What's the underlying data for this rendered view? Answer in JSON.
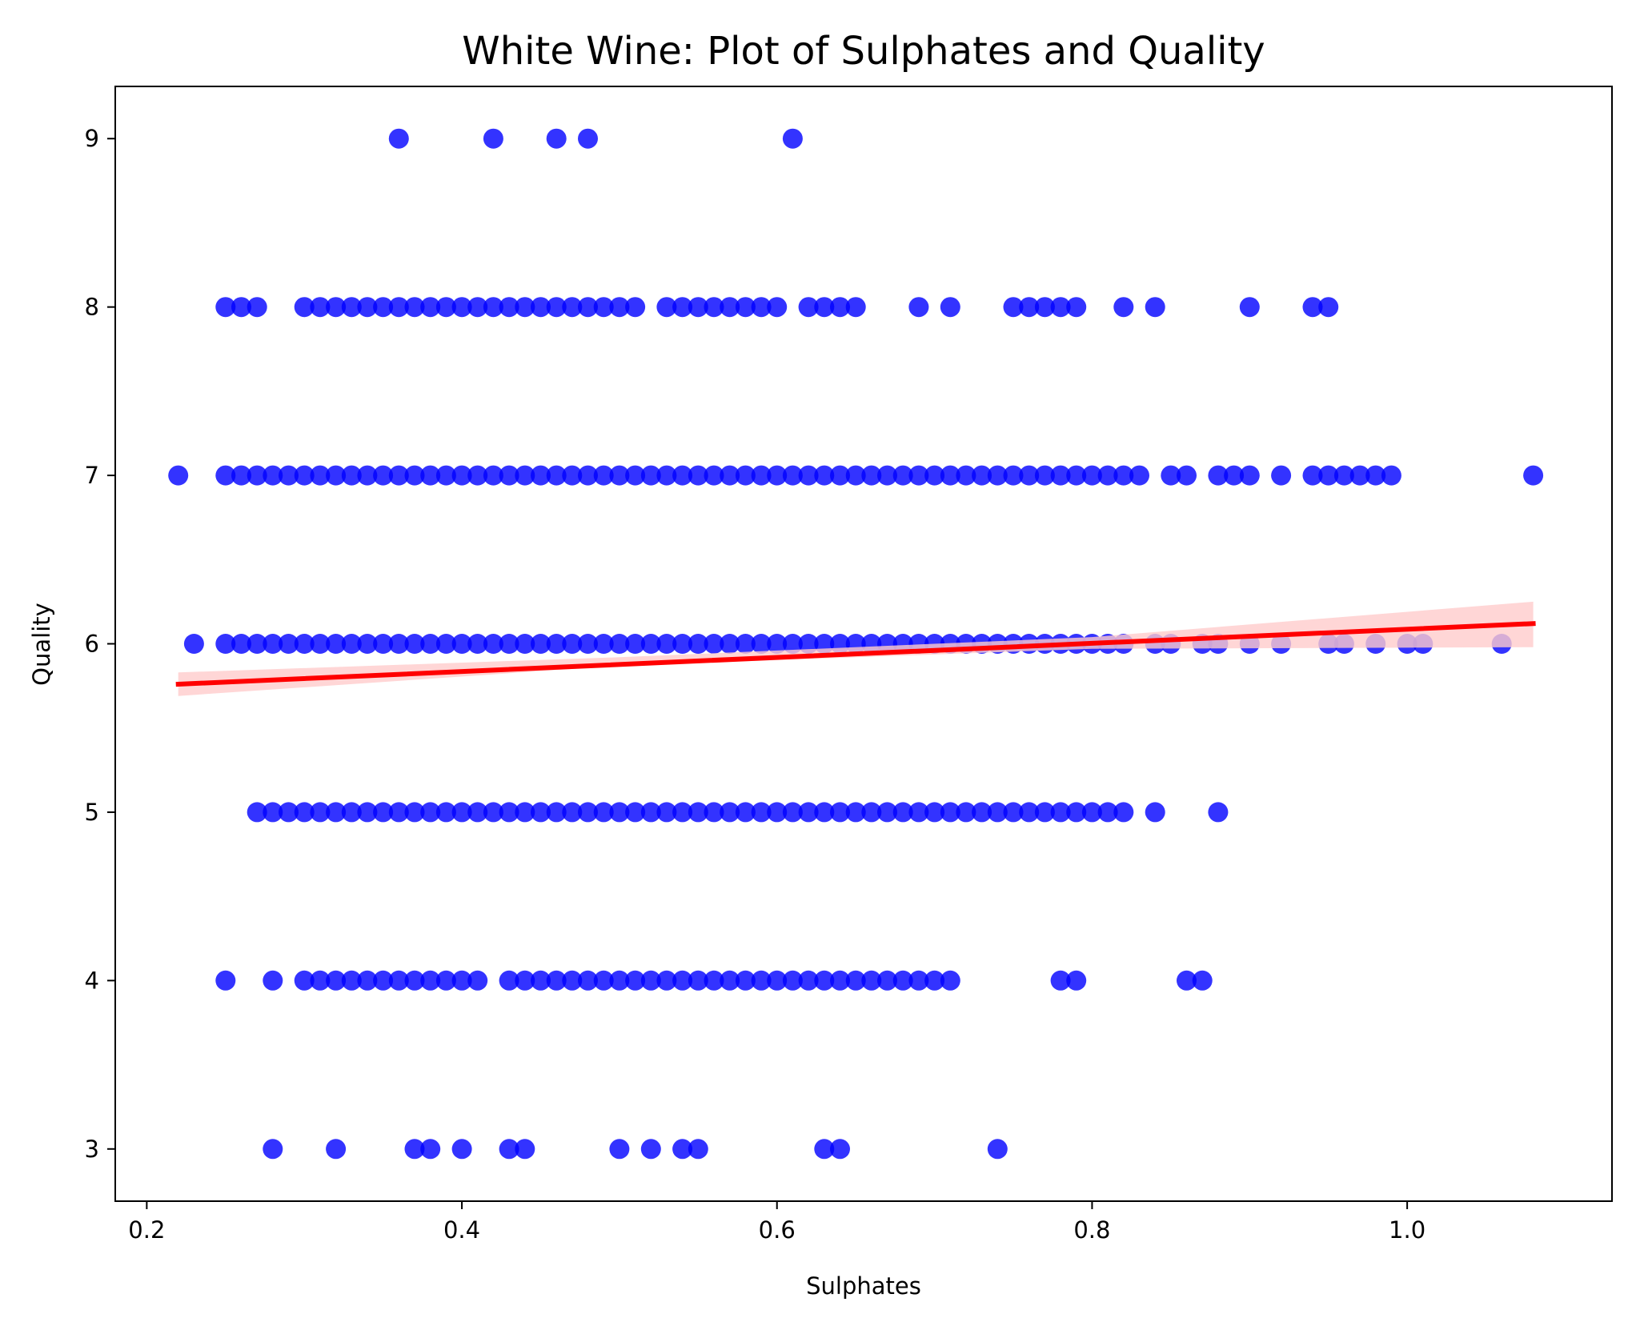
{
  "chart_data": {
    "type": "scatter",
    "title": "White Wine: Plot of Sulphates and Quality",
    "xlabel": "Sulphates",
    "ylabel": "Quality",
    "xlim": [
      0.18,
      1.13
    ],
    "ylim": [
      2.69,
      9.31
    ],
    "xticks": [
      0.2,
      0.4,
      0.6,
      0.8,
      1.0
    ],
    "xtick_labels": [
      "0.2",
      "0.4",
      "0.6",
      "0.8",
      "1.0"
    ],
    "yticks": [
      3,
      4,
      5,
      6,
      7,
      8,
      9
    ],
    "ytick_labels": [
      "3",
      "4",
      "5",
      "6",
      "7",
      "8",
      "9"
    ],
    "grid": false,
    "legend": "none",
    "colors": {
      "points": "#0000ff",
      "regression": "#ff0000",
      "confidence_band": "#ffcccc"
    },
    "series": [
      {
        "kind": "points",
        "rows": [
          {
            "y": 9,
            "x": [
              0.36,
              0.42,
              0.46,
              0.48,
              0.61
            ]
          },
          {
            "y": 8,
            "x": [
              0.25,
              0.26,
              0.27,
              0.3,
              0.31,
              0.32,
              0.33,
              0.34,
              0.35,
              0.36,
              0.37,
              0.38,
              0.39,
              0.4,
              0.41,
              0.42,
              0.43,
              0.44,
              0.45,
              0.46,
              0.47,
              0.48,
              0.49,
              0.5,
              0.51,
              0.53,
              0.54,
              0.55,
              0.56,
              0.57,
              0.58,
              0.59,
              0.6,
              0.62,
              0.63,
              0.64,
              0.65,
              0.69,
              0.71,
              0.75,
              0.76,
              0.77,
              0.78,
              0.79,
              0.82,
              0.84,
              0.9,
              0.94,
              0.95
            ]
          },
          {
            "y": 7,
            "x": [
              0.22,
              0.25,
              0.26,
              0.27,
              0.28,
              0.29,
              0.3,
              0.31,
              0.32,
              0.33,
              0.34,
              0.35,
              0.36,
              0.37,
              0.38,
              0.39,
              0.4,
              0.41,
              0.42,
              0.43,
              0.44,
              0.45,
              0.46,
              0.47,
              0.48,
              0.49,
              0.5,
              0.51,
              0.52,
              0.53,
              0.54,
              0.55,
              0.56,
              0.57,
              0.58,
              0.59,
              0.6,
              0.61,
              0.62,
              0.63,
              0.64,
              0.65,
              0.66,
              0.67,
              0.68,
              0.69,
              0.7,
              0.71,
              0.72,
              0.73,
              0.74,
              0.75,
              0.76,
              0.77,
              0.78,
              0.79,
              0.8,
              0.81,
              0.82,
              0.83,
              0.85,
              0.86,
              0.88,
              0.89,
              0.9,
              0.92,
              0.94,
              0.95,
              0.96,
              0.97,
              0.98,
              0.99,
              1.08
            ]
          },
          {
            "y": 6,
            "x": [
              0.23,
              0.25,
              0.26,
              0.27,
              0.28,
              0.29,
              0.3,
              0.31,
              0.32,
              0.33,
              0.34,
              0.35,
              0.36,
              0.37,
              0.38,
              0.39,
              0.4,
              0.41,
              0.42,
              0.43,
              0.44,
              0.45,
              0.46,
              0.47,
              0.48,
              0.49,
              0.5,
              0.51,
              0.52,
              0.53,
              0.54,
              0.55,
              0.56,
              0.57,
              0.58,
              0.59,
              0.6,
              0.61,
              0.62,
              0.63,
              0.64,
              0.65,
              0.66,
              0.67,
              0.68,
              0.69,
              0.7,
              0.71,
              0.72,
              0.73,
              0.74,
              0.75,
              0.76,
              0.77,
              0.78,
              0.79,
              0.8,
              0.81,
              0.82,
              0.84,
              0.85,
              0.87,
              0.88,
              0.9,
              0.92,
              0.95,
              0.96,
              0.98,
              1.0,
              1.01,
              1.06
            ]
          },
          {
            "y": 5,
            "x": [
              0.27,
              0.28,
              0.29,
              0.3,
              0.31,
              0.32,
              0.33,
              0.34,
              0.35,
              0.36,
              0.37,
              0.38,
              0.39,
              0.4,
              0.41,
              0.42,
              0.43,
              0.44,
              0.45,
              0.46,
              0.47,
              0.48,
              0.49,
              0.5,
              0.51,
              0.52,
              0.53,
              0.54,
              0.55,
              0.56,
              0.57,
              0.58,
              0.59,
              0.6,
              0.61,
              0.62,
              0.63,
              0.64,
              0.65,
              0.66,
              0.67,
              0.68,
              0.69,
              0.7,
              0.71,
              0.72,
              0.73,
              0.74,
              0.75,
              0.76,
              0.77,
              0.78,
              0.79,
              0.8,
              0.81,
              0.82,
              0.84,
              0.88
            ]
          },
          {
            "y": 4,
            "x": [
              0.25,
              0.28,
              0.3,
              0.31,
              0.32,
              0.33,
              0.34,
              0.35,
              0.36,
              0.37,
              0.38,
              0.39,
              0.4,
              0.41,
              0.43,
              0.44,
              0.45,
              0.46,
              0.47,
              0.48,
              0.49,
              0.5,
              0.51,
              0.52,
              0.53,
              0.54,
              0.55,
              0.56,
              0.57,
              0.58,
              0.59,
              0.6,
              0.61,
              0.62,
              0.63,
              0.64,
              0.65,
              0.66,
              0.67,
              0.68,
              0.69,
              0.7,
              0.71,
              0.78,
              0.79,
              0.86,
              0.87
            ]
          },
          {
            "y": 3,
            "x": [
              0.28,
              0.32,
              0.37,
              0.38,
              0.4,
              0.43,
              0.44,
              0.5,
              0.52,
              0.54,
              0.55,
              0.63,
              0.64,
              0.74
            ]
          }
        ]
      },
      {
        "kind": "regression_line",
        "x": [
          0.22,
          1.08
        ],
        "y": [
          5.76,
          6.12
        ]
      },
      {
        "kind": "confidence_band",
        "x": [
          0.22,
          0.5,
          0.8,
          1.08
        ],
        "lower": [
          5.69,
          5.87,
          5.97,
          5.98
        ],
        "upper": [
          5.83,
          5.92,
          6.04,
          6.25
        ]
      }
    ]
  }
}
